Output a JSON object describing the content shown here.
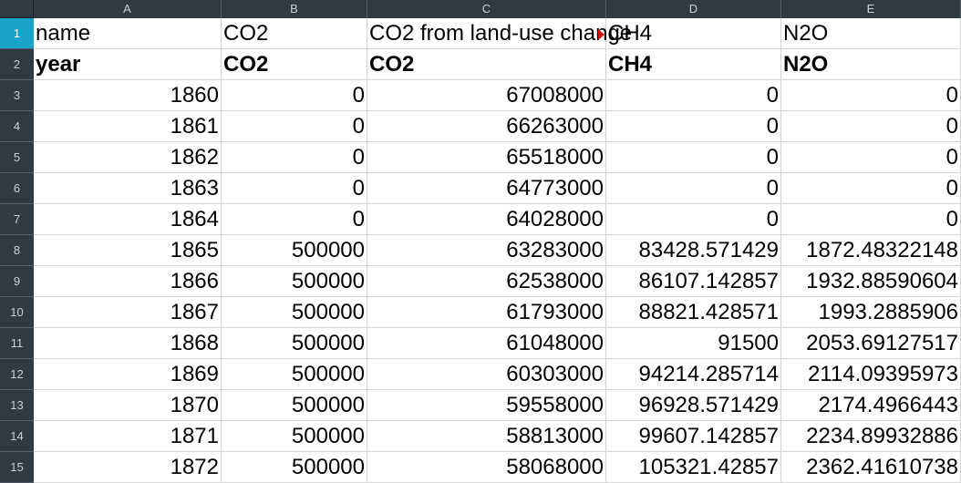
{
  "columns": [
    "A",
    "B",
    "C",
    "D",
    "E"
  ],
  "row_numbers": [
    "1",
    "2",
    "3",
    "4",
    "5",
    "6",
    "7",
    "8",
    "9",
    "10",
    "11",
    "12",
    "13",
    "14",
    "15"
  ],
  "header_row": [
    "name",
    "CO2",
    "CO2 from land-use change",
    "CH4",
    "N2O"
  ],
  "unit_row": [
    "year",
    "CO2",
    "CO2",
    "CH4",
    "N2O"
  ],
  "data_rows": [
    [
      "1860",
      "0",
      "67008000",
      "0",
      "0"
    ],
    [
      "1861",
      "0",
      "66263000",
      "0",
      "0"
    ],
    [
      "1862",
      "0",
      "65518000",
      "0",
      "0"
    ],
    [
      "1863",
      "0",
      "64773000",
      "0",
      "0"
    ],
    [
      "1864",
      "0",
      "64028000",
      "0",
      "0"
    ],
    [
      "1865",
      "500000",
      "63283000",
      "83428.571429",
      "1872.48322148"
    ],
    [
      "1866",
      "500000",
      "62538000",
      "86107.142857",
      "1932.88590604"
    ],
    [
      "1867",
      "500000",
      "61793000",
      "88821.428571",
      "1993.2885906"
    ],
    [
      "1868",
      "500000",
      "61048000",
      "91500",
      "2053.69127517"
    ],
    [
      "1869",
      "500000",
      "60303000",
      "94214.285714",
      "2114.09395973"
    ],
    [
      "1870",
      "500000",
      "59558000",
      "96928.571429",
      "2174.4966443"
    ],
    [
      "1871",
      "500000",
      "58813000",
      "99607.142857",
      "2234.89932886"
    ],
    [
      "1872",
      "500000",
      "58068000",
      "105321.42857",
      "2362.41610738"
    ]
  ]
}
